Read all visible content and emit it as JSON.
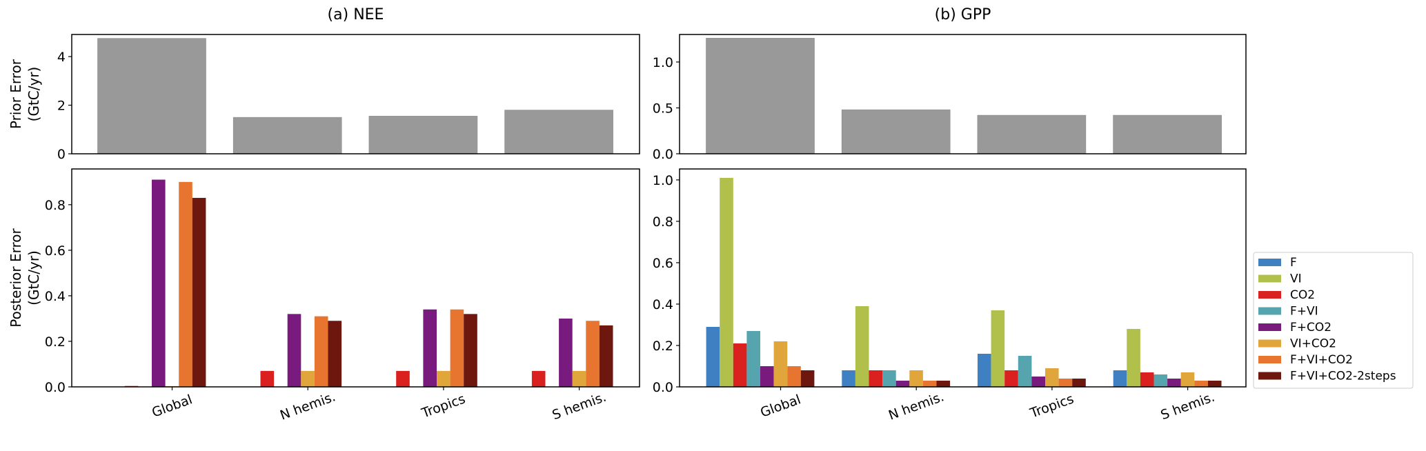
{
  "chart_data": {
    "type": "bar",
    "categories": [
      "Global",
      "N hemis.",
      "Tropics",
      "S hemis."
    ],
    "series_names": [
      "F",
      "VI",
      "CO2",
      "F+VI",
      "F+CO2",
      "VI+CO2",
      "F+VI+CO2",
      "F+VI+CO2-2steps"
    ],
    "series_colors": [
      "#3f80c2",
      "#b1bf4b",
      "#db2020",
      "#56a4ae",
      "#791a7e",
      "#e0a53b",
      "#e8752f",
      "#6e170e"
    ],
    "prior_color": "#999999",
    "panels": [
      {
        "title": "(a) NEE",
        "prior": {
          "ylabel_lines": [
            "Prior Error",
            "(GtC/yr)"
          ],
          "ylim": [
            0,
            4.91
          ],
          "yticks": [
            0,
            2,
            4
          ],
          "ytick_labels": [
            "0",
            "2",
            "4"
          ],
          "values": [
            4.75,
            1.5,
            1.55,
            1.8
          ]
        },
        "posterior": {
          "ylabel_lines": [
            "Posterior Error",
            "(GtC/yr)"
          ],
          "ylim": [
            0,
            0.957
          ],
          "yticks": [
            0,
            0.2,
            0.4,
            0.6,
            0.8
          ],
          "ytick_labels": [
            "0.0",
            "0.2",
            "0.4",
            "0.6",
            "0.8"
          ],
          "series": [
            {
              "name": "F",
              "values": [
                null,
                null,
                null,
                null
              ]
            },
            {
              "name": "VI",
              "values": [
                null,
                null,
                null,
                null
              ]
            },
            {
              "name": "CO2",
              "values": [
                0.004,
                0.07,
                0.07,
                0.07
              ]
            },
            {
              "name": "F+VI",
              "values": [
                null,
                null,
                null,
                null
              ]
            },
            {
              "name": "F+CO2",
              "values": [
                0.91,
                0.32,
                0.34,
                0.3
              ]
            },
            {
              "name": "VI+CO2",
              "values": [
                0.003,
                0.07,
                0.07,
                0.07
              ]
            },
            {
              "name": "F+VI+CO2",
              "values": [
                0.9,
                0.31,
                0.34,
                0.29
              ]
            },
            {
              "name": "F+VI+CO2-2steps",
              "values": [
                0.83,
                0.29,
                0.32,
                0.27
              ]
            }
          ]
        }
      },
      {
        "title": "(b) GPP",
        "prior": {
          "ylabel_lines": [],
          "ylim": [
            0,
            1.3
          ],
          "yticks": [
            0,
            0.5,
            1.0
          ],
          "ytick_labels": [
            "0.0",
            "0.5",
            "1.0"
          ],
          "values": [
            1.26,
            0.48,
            0.42,
            0.42
          ]
        },
        "posterior": {
          "ylabel_lines": [],
          "ylim": [
            0,
            1.053
          ],
          "yticks": [
            0,
            0.2,
            0.4,
            0.6,
            0.8,
            1.0
          ],
          "ytick_labels": [
            "0.0",
            "0.2",
            "0.4",
            "0.6",
            "0.8",
            "1.0"
          ],
          "series": [
            {
              "name": "F",
              "values": [
                0.29,
                0.08,
                0.16,
                0.08
              ]
            },
            {
              "name": "VI",
              "values": [
                1.01,
                0.39,
                0.37,
                0.28
              ]
            },
            {
              "name": "CO2",
              "values": [
                0.21,
                0.08,
                0.08,
                0.07
              ]
            },
            {
              "name": "F+VI",
              "values": [
                0.27,
                0.08,
                0.15,
                0.06
              ]
            },
            {
              "name": "F+CO2",
              "values": [
                0.1,
                0.03,
                0.05,
                0.04
              ]
            },
            {
              "name": "VI+CO2",
              "values": [
                0.22,
                0.08,
                0.09,
                0.07
              ]
            },
            {
              "name": "F+VI+CO2",
              "values": [
                0.1,
                0.03,
                0.04,
                0.03
              ]
            },
            {
              "name": "F+VI+CO2-2steps",
              "values": [
                0.08,
                0.03,
                0.04,
                0.03
              ]
            }
          ]
        }
      }
    ],
    "legend": {
      "entries": [
        "F",
        "VI",
        "CO2",
        "F+VI",
        "F+CO2",
        "VI+CO2",
        "F+VI+CO2",
        "F+VI+CO2-2steps"
      ],
      "placement": "right"
    }
  }
}
